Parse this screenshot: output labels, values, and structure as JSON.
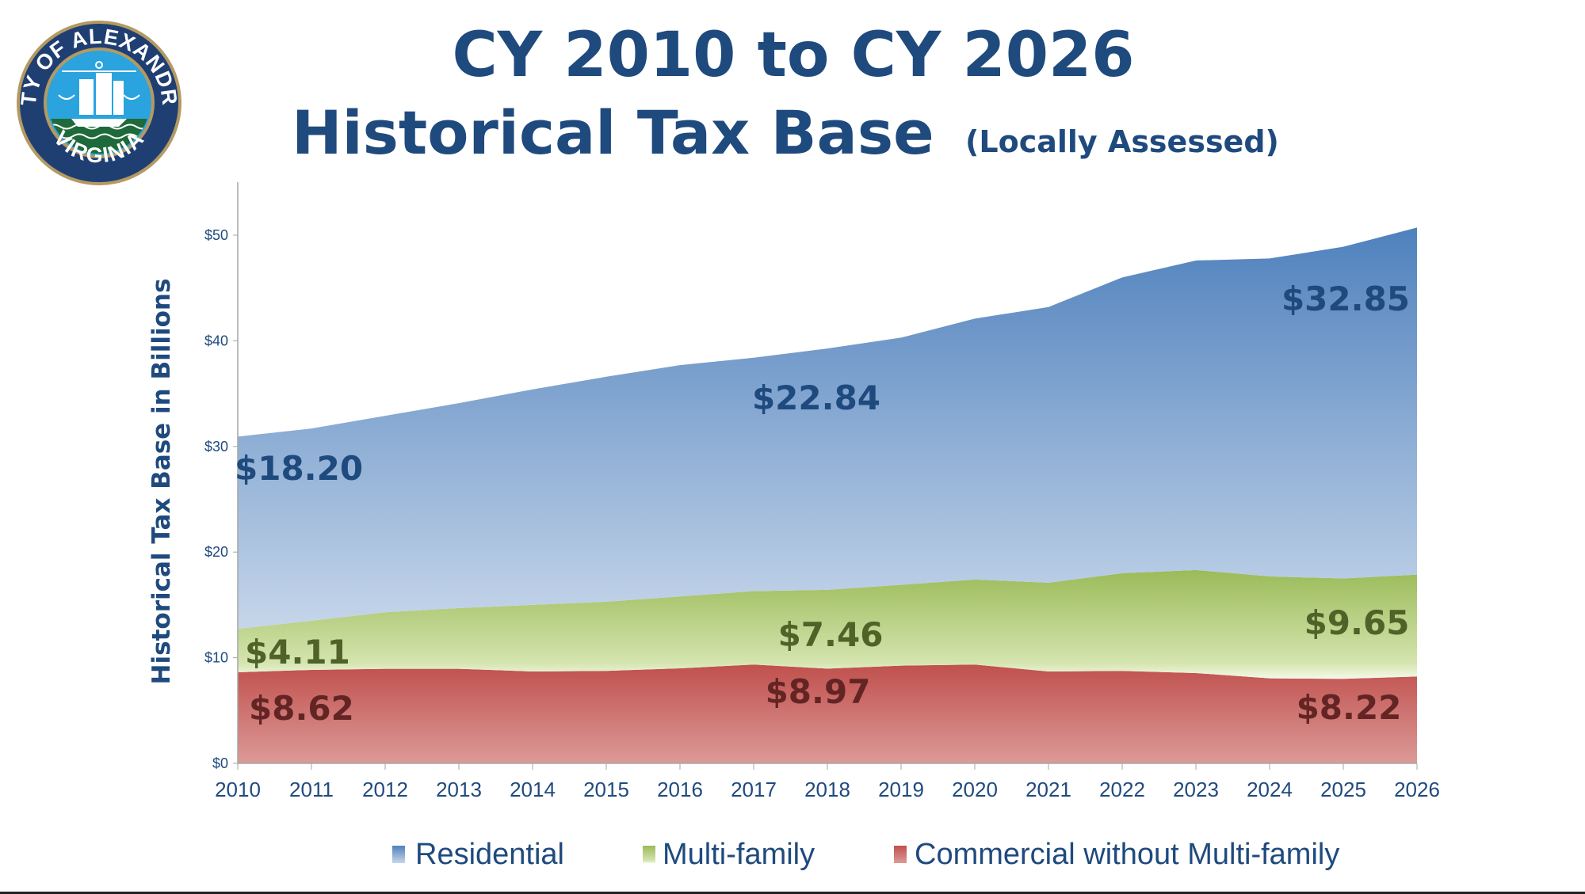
{
  "header": {
    "title_line1": "CY 2010 to CY 2026",
    "title_line2": "Historical Tax Base",
    "title_note": "(Locally Assessed)",
    "logo_text_top": "CITY OF ALEXANDRIA",
    "logo_text_bottom": "VIRGINIA"
  },
  "chart_data": {
    "type": "area",
    "stacked": true,
    "title": "CY 2010 to CY 2026 Historical Tax Base (Locally Assessed)",
    "xlabel": "",
    "ylabel": "Historical Tax Base in Billions",
    "ylim": [
      0,
      55
    ],
    "yticks": [
      0,
      10,
      20,
      30,
      40,
      50
    ],
    "ytick_labels": [
      "$0",
      "$10",
      "$20",
      "$30",
      "$40",
      "$50"
    ],
    "grid": false,
    "legend_position": "bottom",
    "categories": [
      "2010",
      "2011",
      "2012",
      "2013",
      "2014",
      "2015",
      "2016",
      "2017",
      "2018",
      "2019",
      "2020",
      "2021",
      "2022",
      "2023",
      "2024",
      "2025",
      "2026"
    ],
    "series": [
      {
        "name": "Commercial without Multi-family",
        "color": "#c0504d",
        "values": [
          8.62,
          8.85,
          8.95,
          8.95,
          8.7,
          8.75,
          9.0,
          9.35,
          8.97,
          9.25,
          9.35,
          8.7,
          8.75,
          8.55,
          8.05,
          8.0,
          8.22
        ]
      },
      {
        "name": "Multi-family",
        "color": "#9bbb59",
        "values": [
          4.11,
          4.65,
          5.35,
          5.75,
          6.3,
          6.55,
          6.8,
          6.95,
          7.46,
          7.65,
          8.05,
          8.4,
          9.25,
          9.75,
          9.65,
          9.5,
          9.65
        ]
      },
      {
        "name": "Residential",
        "color": "#4f81bd",
        "values": [
          18.2,
          18.2,
          18.6,
          19.4,
          20.4,
          21.3,
          21.9,
          22.1,
          22.84,
          23.4,
          24.7,
          26.1,
          28.0,
          29.3,
          30.1,
          31.4,
          32.85
        ]
      }
    ],
    "data_labels": [
      {
        "series": "Residential",
        "year": "2010",
        "text": "$18.20",
        "color": "#1f4a7e"
      },
      {
        "series": "Residential",
        "year": "2018",
        "text": "$22.84",
        "color": "#1f4a7e"
      },
      {
        "series": "Residential",
        "year": "2026",
        "text": "$32.85",
        "color": "#1f4a7e"
      },
      {
        "series": "Multi-family",
        "year": "2010",
        "text": "$4.11",
        "color": "#4f6228"
      },
      {
        "series": "Multi-family",
        "year": "2018",
        "text": "$7.46",
        "color": "#4f6228"
      },
      {
        "series": "Multi-family",
        "year": "2026",
        "text": "$9.65",
        "color": "#4f6228"
      },
      {
        "series": "Commercial without Multi-family",
        "year": "2010",
        "text": "$8.62",
        "color": "#632523"
      },
      {
        "series": "Commercial without Multi-family",
        "year": "2018",
        "text": "$8.97",
        "color": "#632523"
      },
      {
        "series": "Commercial without Multi-family",
        "year": "2026",
        "text": "$8.22",
        "color": "#632523"
      }
    ],
    "legend": [
      "Residential",
      "Multi-family",
      "Commercial without Multi-family"
    ]
  }
}
